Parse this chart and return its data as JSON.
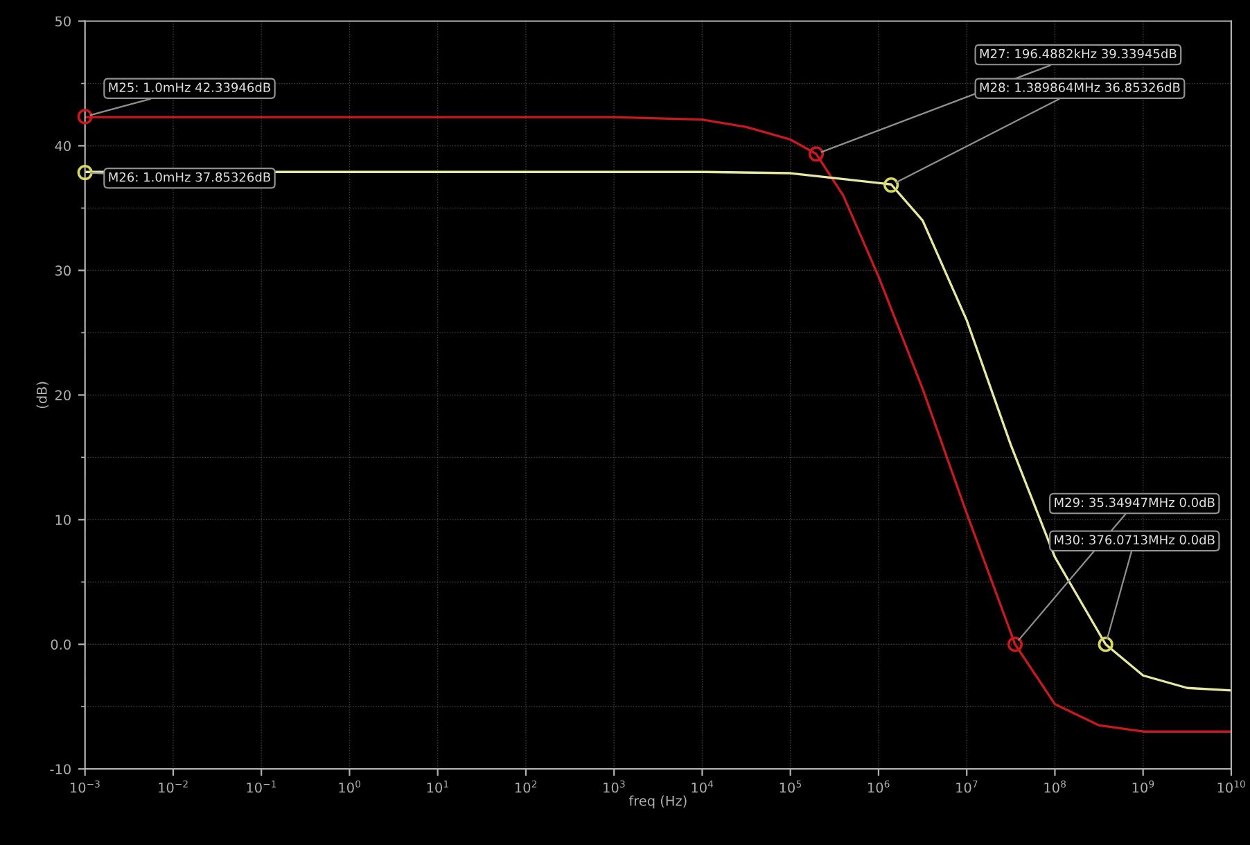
{
  "chart_data": {
    "type": "line",
    "xlabel": "freq (Hz)",
    "ylabel": "(dB)",
    "log": "x",
    "grid": true,
    "marker": "none",
    "xlim": [
      0.001,
      10000000000
    ],
    "ylim": [
      -10,
      50
    ],
    "xticks": [
      {
        "value": 0.001,
        "label": "10$^{−3}$"
      },
      {
        "value": 0.01,
        "label": "10$^{−2}$"
      },
      {
        "value": 0.1,
        "label": "10$^{−1}$"
      },
      {
        "value": 1,
        "label": "10$^{0}$"
      },
      {
        "value": 10,
        "label": "10$^{1}$"
      },
      {
        "value": 100,
        "label": "10$^{2}$"
      },
      {
        "value": 1000,
        "label": "10$^{3}$"
      },
      {
        "value": 10000,
        "label": "10$^{4}$"
      },
      {
        "value": 100000,
        "label": "10$^{5}$"
      },
      {
        "value": 1000000,
        "label": "10$^{6}$"
      },
      {
        "value": 10000000,
        "label": "10$^{7}$"
      },
      {
        "value": 100000000,
        "label": "10$^{8}$"
      },
      {
        "value": 1000000000,
        "label": "10$^{9}$"
      },
      {
        "value": 10000000000,
        "label": "10$^{10}$"
      }
    ],
    "yticks": [
      -10,
      {
        "value": 0,
        "label": "0.0"
      },
      10,
      20,
      30,
      40,
      50
    ],
    "series": [
      {
        "color": "#c8191e",
        "x": [
          0.001,
          1000,
          10000,
          31623,
          100000,
          196488,
          398107,
          1000000,
          3162278,
          10000000,
          35349470,
          100000000,
          316227766,
          1000000000,
          10000000000
        ],
        "values": [
          42.3,
          42.3,
          42.1,
          41.5,
          40.5,
          39.34,
          36,
          29.5,
          20.5,
          10.5,
          0,
          -4.8,
          -6.5,
          -7,
          -7
        ]
      },
      {
        "color": "#e8e8a0",
        "x": [
          0.001,
          10000,
          100000,
          1389864,
          3162278,
          10000000,
          31622777,
          100000000,
          376071300,
          1000000000,
          3162277660,
          10000000000
        ],
        "values": [
          37.9,
          37.9,
          37.8,
          36.9,
          34,
          26,
          16,
          7,
          0,
          -2.5,
          -3.5,
          -3.7
        ]
      },
      {
        "type": "scatter",
        "color": "#c8191e",
        "marker": "circle",
        "x": [
          0.001,
          196488.2,
          35349470
        ],
        "values": [
          42.33946,
          39.33945,
          0
        ]
      },
      {
        "type": "scatter",
        "color": "#d8d860",
        "marker": "circle",
        "x": [
          0.001,
          1389864,
          376071300
        ],
        "values": [
          37.85326,
          36.85326,
          0
        ]
      }
    ],
    "annotations": [
      {
        "text": "M25: 1.0mHz 42.33946dB",
        "x": 0.001,
        "y": 42.33946
      },
      {
        "text": "M26: 1.0mHz 37.85326dB",
        "x": 0.001,
        "y": 37.85326
      },
      {
        "text": "M27: 196.4882kHz 39.33945dB",
        "x": 196488.2,
        "y": 39.33945
      },
      {
        "text": "M28: 1.389864MHz 36.85326dB",
        "x": 1389864,
        "y": 36.85326
      },
      {
        "text": "M29: 35.34947MHz 0.0dB",
        "x": 35349470,
        "y": 0
      },
      {
        "text": "M30: 376.0713MHz 0.0dB",
        "x": 376071300,
        "y": 0
      }
    ]
  }
}
